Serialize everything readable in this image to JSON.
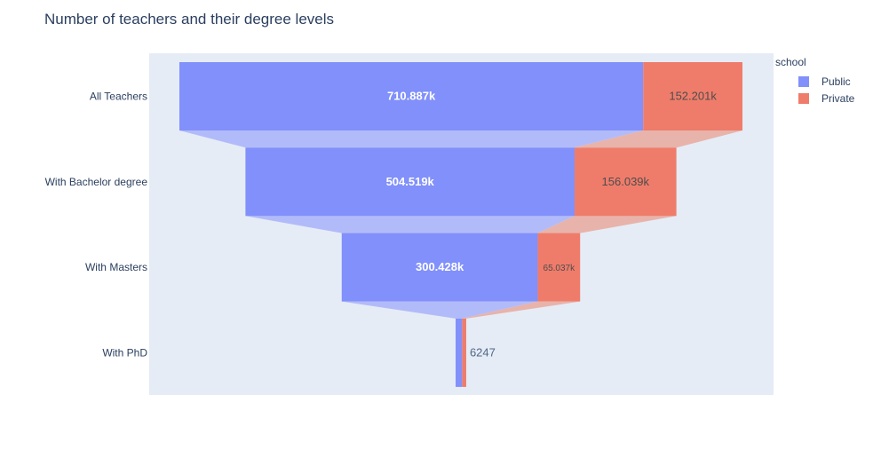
{
  "chart_data": {
    "type": "funnel",
    "title": "Number of teachers and their degree levels",
    "categories": [
      "All Teachers",
      "With Bachelor degree",
      "With Masters",
      "With PhD"
    ],
    "series": [
      {
        "name": "Public",
        "values": [
          710887,
          504519,
          300428,
          10000
        ],
        "labels": [
          "710.887k",
          "504.519k",
          "300.428k",
          ""
        ],
        "color": "#8190fa"
      },
      {
        "name": "Private",
        "values": [
          152201,
          156039,
          65037,
          6247
        ],
        "labels": [
          "152.201k",
          "156.039k",
          "65.037k",
          "6247"
        ],
        "color": "#ef7c6a"
      }
    ],
    "legend": {
      "title": "school",
      "position": "top-right"
    },
    "colors": {
      "plot_bg": "#e5ecf6",
      "public": "#8190fa",
      "private": "#ef7c6a",
      "public_connector": "#b2bbf9",
      "private_connector": "#e8b3aa",
      "text": "#2a3f5f"
    }
  }
}
